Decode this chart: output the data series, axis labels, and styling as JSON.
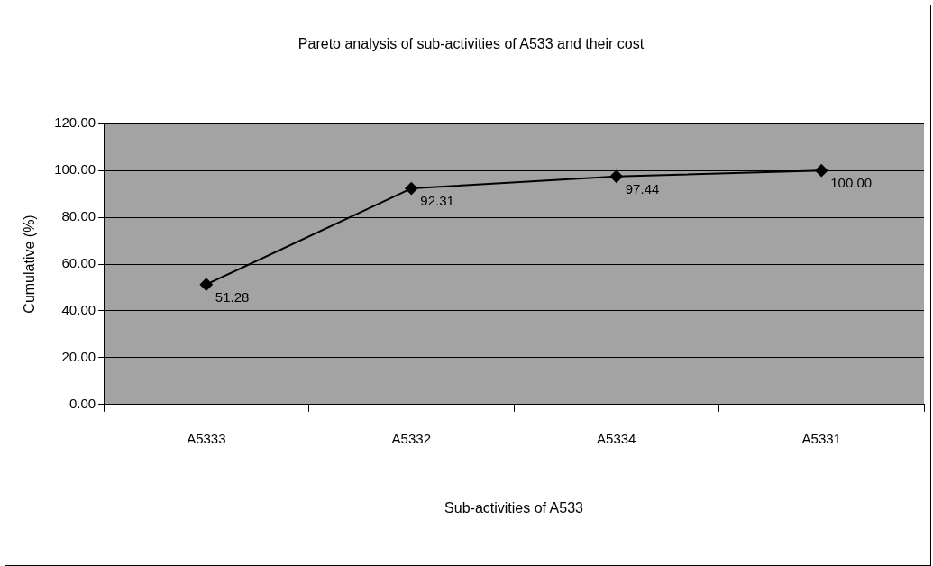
{
  "chart_data": {
    "type": "line",
    "title": "Pareto analysis of sub-activities of A533 and their cost",
    "xlabel": "Sub-activities of A533",
    "ylabel": "Cumulative (%)",
    "categories": [
      "A5333",
      "A5332",
      "A5334",
      "A5331"
    ],
    "series": [
      {
        "color": "#000000",
        "values": [
          51.28,
          92.31,
          97.44,
          100
        ],
        "value_labels": [
          "51.28",
          "92.31",
          "97.44",
          "100.00"
        ]
      }
    ],
    "ylim": [
      0,
      120
    ],
    "yticks": [
      {
        "value": 0,
        "label": "0.00"
      },
      {
        "value": 20,
        "label": "20.00"
      },
      {
        "value": 40,
        "label": "40.00"
      },
      {
        "value": 60,
        "label": "60.00"
      },
      {
        "value": 80,
        "label": "80.00"
      },
      {
        "value": 100,
        "label": "100.00"
      },
      {
        "value": 120,
        "label": "120.00"
      }
    ],
    "grid": "y",
    "legend": false,
    "marker": "diamond",
    "line_style": "solid"
  }
}
